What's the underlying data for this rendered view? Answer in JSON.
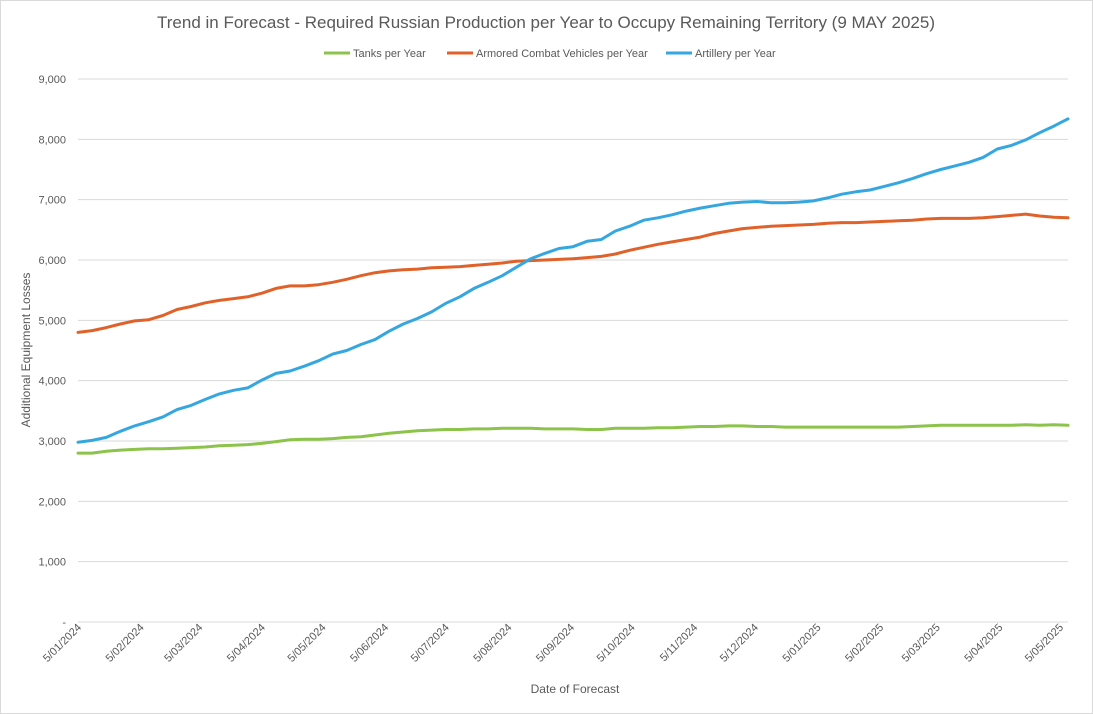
{
  "chart_data": {
    "type": "line",
    "title": "Trend in Forecast - Required Russian Production per Year to Occupy Remaining Territory (9 MAY 2025)",
    "xlabel": "Date of Forecast",
    "ylabel": "Additional Equipment Losses",
    "ylim": [
      0,
      9000
    ],
    "ytick_labels": [
      "-",
      "1,000",
      "2,000",
      "3,000",
      "4,000",
      "5,000",
      "6,000",
      "7,000",
      "8,000",
      "9,000"
    ],
    "x_tick_labels": [
      "5/01/2024",
      "5/02/2024",
      "5/03/2024",
      "5/04/2024",
      "5/05/2024",
      "5/06/2024",
      "5/07/2024",
      "5/08/2024",
      "5/09/2024",
      "5/10/2024",
      "5/11/2024",
      "5/12/2024",
      "5/01/2025",
      "5/02/2025",
      "5/03/2025",
      "5/04/2025",
      "5/05/2025"
    ],
    "x_range": [
      "5/01/2024",
      "9/05/2025"
    ],
    "grid": "horizontal",
    "legend_position": "top",
    "series": [
      {
        "name": "Tanks per Year",
        "color": "#8cc34a",
        "points": [
          [
            "5/01/2024",
            2800
          ],
          [
            "12/01/2024",
            2800
          ],
          [
            "19/01/2024",
            2830
          ],
          [
            "26/01/2024",
            2850
          ],
          [
            "2/02/2024",
            2860
          ],
          [
            "9/02/2024",
            2870
          ],
          [
            "16/02/2024",
            2870
          ],
          [
            "23/02/2024",
            2880
          ],
          [
            "1/03/2024",
            2890
          ],
          [
            "8/03/2024",
            2900
          ],
          [
            "15/03/2024",
            2920
          ],
          [
            "22/03/2024",
            2930
          ],
          [
            "29/03/2024",
            2940
          ],
          [
            "5/04/2024",
            2960
          ],
          [
            "12/04/2024",
            2990
          ],
          [
            "19/04/2024",
            3020
          ],
          [
            "26/04/2024",
            3030
          ],
          [
            "3/05/2024",
            3030
          ],
          [
            "10/05/2024",
            3040
          ],
          [
            "17/05/2024",
            3060
          ],
          [
            "24/05/2024",
            3070
          ],
          [
            "31/05/2024",
            3100
          ],
          [
            "7/06/2024",
            3130
          ],
          [
            "14/06/2024",
            3150
          ],
          [
            "21/06/2024",
            3170
          ],
          [
            "28/06/2024",
            3180
          ],
          [
            "5/07/2024",
            3190
          ],
          [
            "12/07/2024",
            3190
          ],
          [
            "19/07/2024",
            3200
          ],
          [
            "26/07/2024",
            3200
          ],
          [
            "2/08/2024",
            3210
          ],
          [
            "9/08/2024",
            3210
          ],
          [
            "16/08/2024",
            3210
          ],
          [
            "23/08/2024",
            3200
          ],
          [
            "30/08/2024",
            3200
          ],
          [
            "6/09/2024",
            3200
          ],
          [
            "13/09/2024",
            3190
          ],
          [
            "20/09/2024",
            3190
          ],
          [
            "27/09/2024",
            3210
          ],
          [
            "4/10/2024",
            3210
          ],
          [
            "11/10/2024",
            3210
          ],
          [
            "18/10/2024",
            3220
          ],
          [
            "25/10/2024",
            3220
          ],
          [
            "1/11/2024",
            3230
          ],
          [
            "8/11/2024",
            3240
          ],
          [
            "15/11/2024",
            3240
          ],
          [
            "22/11/2024",
            3250
          ],
          [
            "29/11/2024",
            3250
          ],
          [
            "6/12/2024",
            3240
          ],
          [
            "13/12/2024",
            3240
          ],
          [
            "20/12/2024",
            3230
          ],
          [
            "27/12/2024",
            3230
          ],
          [
            "3/01/2025",
            3230
          ],
          [
            "10/01/2025",
            3230
          ],
          [
            "17/01/2025",
            3230
          ],
          [
            "24/01/2025",
            3230
          ],
          [
            "31/01/2025",
            3230
          ],
          [
            "7/02/2025",
            3230
          ],
          [
            "14/02/2025",
            3230
          ],
          [
            "21/02/2025",
            3240
          ],
          [
            "28/02/2025",
            3250
          ],
          [
            "7/03/2025",
            3260
          ],
          [
            "14/03/2025",
            3260
          ],
          [
            "21/03/2025",
            3260
          ],
          [
            "28/03/2025",
            3260
          ],
          [
            "4/04/2025",
            3260
          ],
          [
            "11/04/2025",
            3260
          ],
          [
            "18/04/2025",
            3270
          ],
          [
            "25/04/2025",
            3260
          ],
          [
            "2/05/2025",
            3270
          ],
          [
            "9/05/2025",
            3260
          ]
        ]
      },
      {
        "name": "Armored Combat Vehicles per Year",
        "color": "#e0622a",
        "points": [
          [
            "5/01/2024",
            4800
          ],
          [
            "12/01/2024",
            4830
          ],
          [
            "19/01/2024",
            4880
          ],
          [
            "26/01/2024",
            4940
          ],
          [
            "2/02/2024",
            4990
          ],
          [
            "9/02/2024",
            5010
          ],
          [
            "16/02/2024",
            5080
          ],
          [
            "23/02/2024",
            5180
          ],
          [
            "1/03/2024",
            5230
          ],
          [
            "8/03/2024",
            5290
          ],
          [
            "15/03/2024",
            5330
          ],
          [
            "22/03/2024",
            5360
          ],
          [
            "29/03/2024",
            5390
          ],
          [
            "5/04/2024",
            5450
          ],
          [
            "12/04/2024",
            5530
          ],
          [
            "19/04/2024",
            5570
          ],
          [
            "26/04/2024",
            5570
          ],
          [
            "3/05/2024",
            5590
          ],
          [
            "10/05/2024",
            5630
          ],
          [
            "17/05/2024",
            5680
          ],
          [
            "24/05/2024",
            5740
          ],
          [
            "31/05/2024",
            5790
          ],
          [
            "7/06/2024",
            5820
          ],
          [
            "14/06/2024",
            5840
          ],
          [
            "21/06/2024",
            5850
          ],
          [
            "28/06/2024",
            5870
          ],
          [
            "5/07/2024",
            5880
          ],
          [
            "12/07/2024",
            5890
          ],
          [
            "19/07/2024",
            5910
          ],
          [
            "26/07/2024",
            5930
          ],
          [
            "2/08/2024",
            5950
          ],
          [
            "9/08/2024",
            5980
          ],
          [
            "16/08/2024",
            5990
          ],
          [
            "23/08/2024",
            6000
          ],
          [
            "30/08/2024",
            6010
          ],
          [
            "6/09/2024",
            6020
          ],
          [
            "13/09/2024",
            6040
          ],
          [
            "20/09/2024",
            6060
          ],
          [
            "27/09/2024",
            6100
          ],
          [
            "4/10/2024",
            6160
          ],
          [
            "11/10/2024",
            6210
          ],
          [
            "18/10/2024",
            6260
          ],
          [
            "25/10/2024",
            6300
          ],
          [
            "1/11/2024",
            6340
          ],
          [
            "8/11/2024",
            6380
          ],
          [
            "15/11/2024",
            6440
          ],
          [
            "22/11/2024",
            6480
          ],
          [
            "29/11/2024",
            6520
          ],
          [
            "6/12/2024",
            6540
          ],
          [
            "13/12/2024",
            6560
          ],
          [
            "20/12/2024",
            6570
          ],
          [
            "27/12/2024",
            6580
          ],
          [
            "3/01/2025",
            6590
          ],
          [
            "10/01/2025",
            6610
          ],
          [
            "17/01/2025",
            6620
          ],
          [
            "24/01/2025",
            6620
          ],
          [
            "31/01/2025",
            6630
          ],
          [
            "7/02/2025",
            6640
          ],
          [
            "14/02/2025",
            6650
          ],
          [
            "21/02/2025",
            6660
          ],
          [
            "28/02/2025",
            6680
          ],
          [
            "7/03/2025",
            6690
          ],
          [
            "14/03/2025",
            6690
          ],
          [
            "21/03/2025",
            6690
          ],
          [
            "28/03/2025",
            6700
          ],
          [
            "4/04/2025",
            6720
          ],
          [
            "11/04/2025",
            6740
          ],
          [
            "18/04/2025",
            6760
          ],
          [
            "25/04/2025",
            6730
          ],
          [
            "2/05/2025",
            6710
          ],
          [
            "9/05/2025",
            6700
          ]
        ]
      },
      {
        "name": "Artillery per Year",
        "color": "#35a7e0",
        "points": [
          [
            "5/01/2024",
            2980
          ],
          [
            "12/01/2024",
            3010
          ],
          [
            "19/01/2024",
            3060
          ],
          [
            "26/01/2024",
            3160
          ],
          [
            "2/02/2024",
            3250
          ],
          [
            "9/02/2024",
            3320
          ],
          [
            "16/02/2024",
            3400
          ],
          [
            "23/02/2024",
            3520
          ],
          [
            "1/03/2024",
            3590
          ],
          [
            "8/03/2024",
            3690
          ],
          [
            "15/03/2024",
            3780
          ],
          [
            "22/03/2024",
            3840
          ],
          [
            "29/03/2024",
            3880
          ],
          [
            "5/04/2024",
            4010
          ],
          [
            "12/04/2024",
            4120
          ],
          [
            "19/04/2024",
            4160
          ],
          [
            "26/04/2024",
            4240
          ],
          [
            "3/05/2024",
            4330
          ],
          [
            "10/05/2024",
            4440
          ],
          [
            "17/05/2024",
            4500
          ],
          [
            "24/05/2024",
            4600
          ],
          [
            "31/05/2024",
            4680
          ],
          [
            "7/06/2024",
            4820
          ],
          [
            "14/06/2024",
            4940
          ],
          [
            "21/06/2024",
            5030
          ],
          [
            "28/06/2024",
            5140
          ],
          [
            "5/07/2024",
            5280
          ],
          [
            "12/07/2024",
            5390
          ],
          [
            "19/07/2024",
            5530
          ],
          [
            "26/07/2024",
            5630
          ],
          [
            "2/08/2024",
            5740
          ],
          [
            "9/08/2024",
            5880
          ],
          [
            "16/08/2024",
            6020
          ],
          [
            "23/08/2024",
            6110
          ],
          [
            "30/08/2024",
            6190
          ],
          [
            "6/09/2024",
            6220
          ],
          [
            "13/09/2024",
            6310
          ],
          [
            "20/09/2024",
            6340
          ],
          [
            "27/09/2024",
            6480
          ],
          [
            "4/10/2024",
            6560
          ],
          [
            "11/10/2024",
            6660
          ],
          [
            "18/10/2024",
            6700
          ],
          [
            "25/10/2024",
            6750
          ],
          [
            "1/11/2024",
            6810
          ],
          [
            "8/11/2024",
            6860
          ],
          [
            "15/11/2024",
            6900
          ],
          [
            "22/11/2024",
            6940
          ],
          [
            "29/11/2024",
            6960
          ],
          [
            "6/12/2024",
            6970
          ],
          [
            "13/12/2024",
            6950
          ],
          [
            "20/12/2024",
            6950
          ],
          [
            "27/12/2024",
            6960
          ],
          [
            "3/01/2025",
            6980
          ],
          [
            "10/01/2025",
            7030
          ],
          [
            "17/01/2025",
            7090
          ],
          [
            "24/01/2025",
            7130
          ],
          [
            "31/01/2025",
            7160
          ],
          [
            "7/02/2025",
            7220
          ],
          [
            "14/02/2025",
            7280
          ],
          [
            "21/02/2025",
            7350
          ],
          [
            "28/02/2025",
            7430
          ],
          [
            "7/03/2025",
            7500
          ],
          [
            "14/03/2025",
            7560
          ],
          [
            "21/03/2025",
            7620
          ],
          [
            "28/03/2025",
            7700
          ],
          [
            "4/04/2025",
            7840
          ],
          [
            "11/04/2025",
            7900
          ],
          [
            "18/04/2025",
            7990
          ],
          [
            "25/04/2025",
            8110
          ],
          [
            "2/05/2025",
            8220
          ],
          [
            "9/05/2025",
            8340
          ]
        ]
      }
    ]
  }
}
